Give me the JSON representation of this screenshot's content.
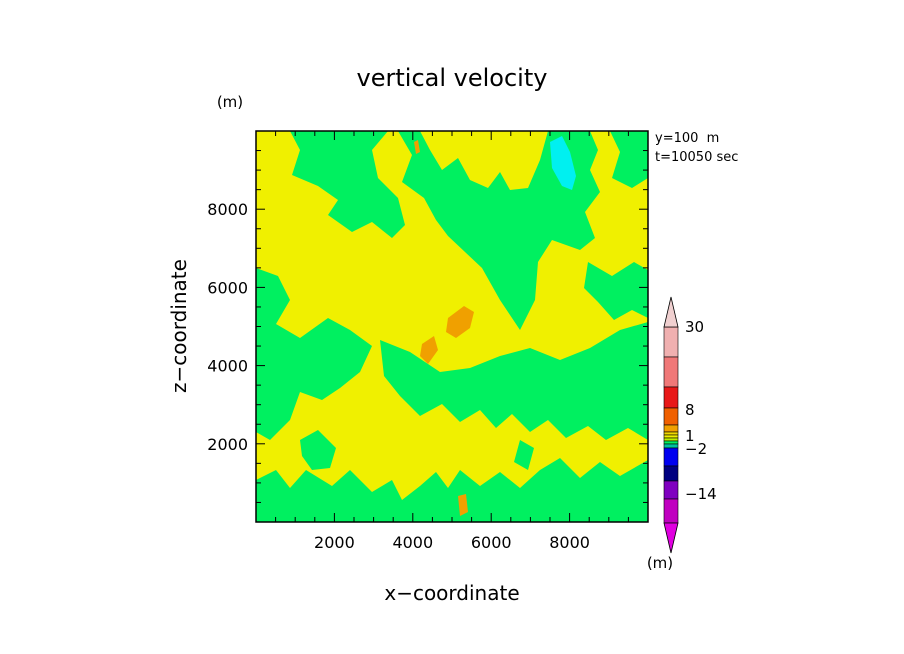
{
  "chart_data": {
    "type": "heatmap",
    "title": "vertical velocity",
    "xlabel": "x−coordinate",
    "ylabel": "z−coordinate",
    "y_unit": "(m)",
    "xlim": [
      0,
      10000
    ],
    "ylim": [
      0,
      10000
    ],
    "x_ticks": [
      2000,
      4000,
      6000,
      8000
    ],
    "y_ticks": [
      2000,
      4000,
      6000,
      8000
    ],
    "info_lines": [
      "y=100  m",
      "t=10050 sec"
    ],
    "colorbar": {
      "unit": "(m)",
      "labels": [
        "30",
        "8",
        "1",
        "−2",
        "−14"
      ],
      "colors": [
        "#f0b0b0",
        "#f07878",
        "#e81818",
        "#f06000",
        "#f0a000",
        "#f0d800",
        "#f0f000",
        "#c0f000",
        "#00f060",
        "#00c0a0",
        "#0000f0",
        "#000080",
        "#8000c0",
        "#c000c0"
      ],
      "top_color": "#f0d0d0",
      "bottom_color": "#e000e0"
    },
    "contour_levels": [
      {
        "range": "-2 to 0",
        "color": "#00f060"
      },
      {
        "range": "0 to 1",
        "color": "#f0f000"
      },
      {
        "range": "1 to 2",
        "color": "#f0a000"
      },
      {
        "range": "-4 to -2",
        "color": "#00f0f0"
      }
    ]
  }
}
